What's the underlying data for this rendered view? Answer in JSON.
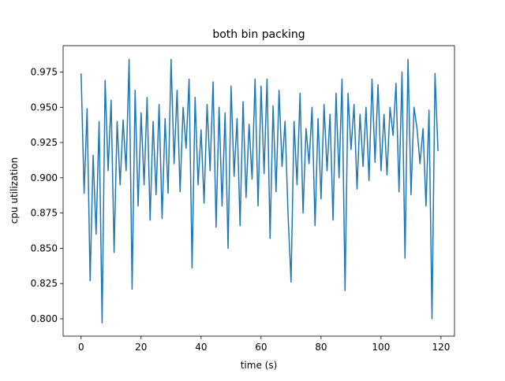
{
  "chart_data": {
    "type": "line",
    "title": "both bin packing",
    "xlabel": "time (s)",
    "ylabel": "cpu utilization",
    "x": [
      0,
      1,
      2,
      3,
      4,
      5,
      6,
      7,
      8,
      9,
      10,
      11,
      12,
      13,
      14,
      15,
      16,
      17,
      18,
      19,
      20,
      21,
      22,
      23,
      24,
      25,
      26,
      27,
      28,
      29,
      30,
      31,
      32,
      33,
      34,
      35,
      36,
      37,
      38,
      39,
      40,
      41,
      42,
      43,
      44,
      45,
      46,
      47,
      48,
      49,
      50,
      51,
      52,
      53,
      54,
      55,
      56,
      57,
      58,
      59,
      60,
      61,
      62,
      63,
      64,
      65,
      66,
      67,
      68,
      69,
      70,
      71,
      72,
      73,
      74,
      75,
      76,
      77,
      78,
      79,
      80,
      81,
      82,
      83,
      84,
      85,
      86,
      87,
      88,
      89,
      90,
      91,
      92,
      93,
      94,
      95,
      96,
      97,
      98,
      99,
      100,
      101,
      102,
      103,
      104,
      105,
      106,
      107,
      108,
      109,
      110,
      111,
      112,
      113,
      114,
      115,
      116,
      117,
      118,
      119
    ],
    "series": [
      {
        "color": "#1f77b4",
        "values": [
          0.974,
          0.889,
          0.949,
          0.827,
          0.916,
          0.86,
          0.94,
          0.797,
          0.969,
          0.905,
          0.955,
          0.847,
          0.94,
          0.895,
          0.941,
          0.905,
          0.984,
          0.821,
          0.962,
          0.88,
          0.946,
          0.895,
          0.957,
          0.87,
          0.94,
          0.888,
          0.952,
          0.871,
          0.942,
          0.889,
          0.984,
          0.91,
          0.962,
          0.89,
          0.95,
          0.921,
          0.97,
          0.836,
          0.957,
          0.895,
          0.934,
          0.882,
          0.952,
          0.905,
          0.968,
          0.865,
          0.95,
          0.88,
          0.946,
          0.85,
          0.965,
          0.901,
          0.942,
          0.866,
          0.954,
          0.886,
          0.938,
          0.899,
          0.97,
          0.88,
          0.965,
          0.903,
          0.97,
          0.857,
          0.951,
          0.89,
          0.962,
          0.908,
          0.94,
          0.874,
          0.826,
          0.94,
          0.895,
          0.96,
          0.875,
          0.935,
          0.91,
          0.95,
          0.866,
          0.942,
          0.885,
          0.952,
          0.905,
          0.945,
          0.87,
          0.96,
          0.9,
          0.97,
          0.82,
          0.96,
          0.92,
          0.952,
          0.892,
          0.945,
          0.908,
          0.95,
          0.898,
          0.97,
          0.911,
          0.966,
          0.905,
          0.945,
          0.902,
          0.95,
          0.93,
          0.967,
          0.89,
          0.975,
          0.843,
          0.984,
          0.888,
          0.95,
          0.935,
          0.91,
          0.935,
          0.88,
          0.948,
          0.8,
          0.974,
          0.919
        ]
      }
    ],
    "xlim": [
      -6,
      124.5
    ],
    "ylim": [
      0.7877,
      0.9937
    ],
    "xticks": [
      0,
      20,
      40,
      60,
      80,
      100,
      120
    ],
    "yticks": [
      {
        "value": 0.8,
        "label": "0.800"
      },
      0.825,
      {
        "value": 0.85,
        "label": "0.850"
      },
      0.875,
      {
        "value": 0.9,
        "label": "0.900"
      },
      0.925,
      {
        "value": 0.95,
        "label": "0.950"
      },
      0.975
    ]
  }
}
